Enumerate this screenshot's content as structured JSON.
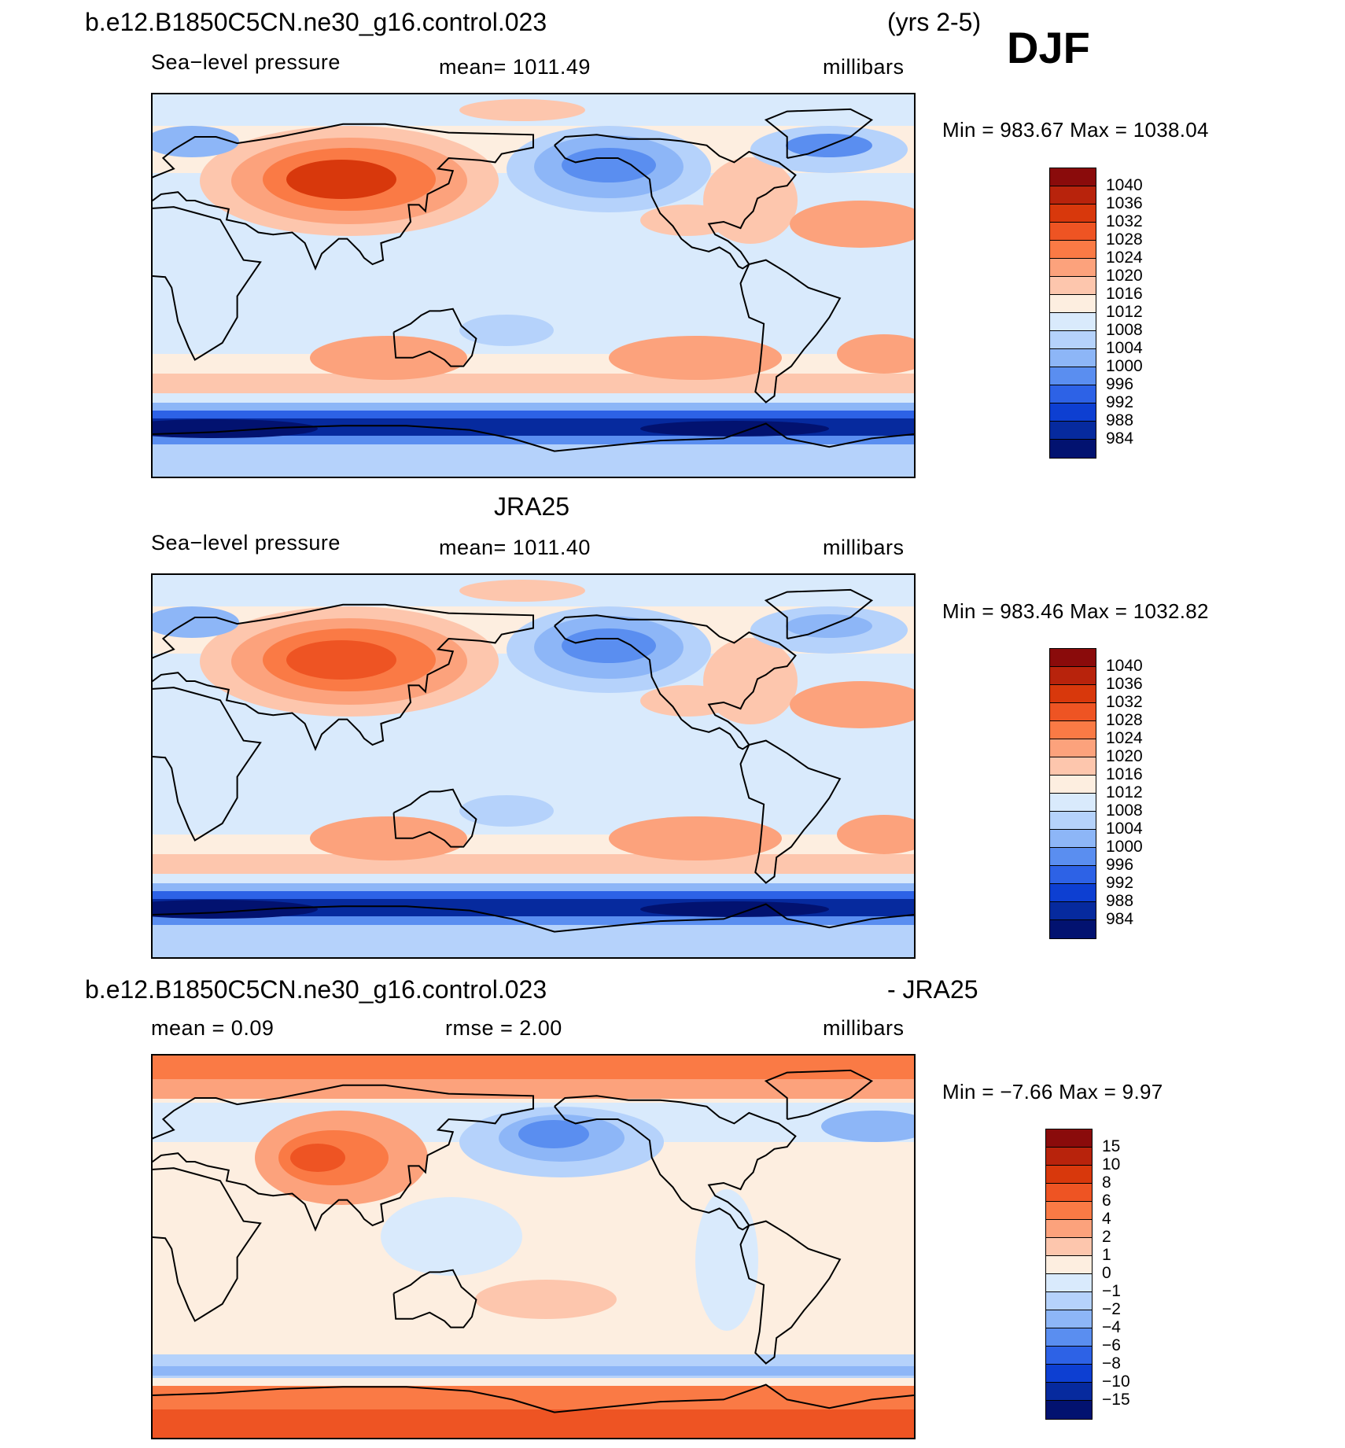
{
  "header": {
    "case_name": "b.e12.B1850C5CN.ne30_g16.control.023",
    "years": "(yrs 2-5)",
    "season": "DJF"
  },
  "panels": [
    {
      "variable": "Sea−level pressure",
      "mean_text": "mean=  1011.49",
      "units": "millibars",
      "minmax": "Min  =  983.67  Max  =  1038.04",
      "title": ""
    },
    {
      "variable": "Sea−level pressure",
      "mean_text": "mean=  1011.40",
      "units": "millibars",
      "minmax": "Min  =  983.46  Max  =  1032.82",
      "title": "JRA25"
    },
    {
      "variable": "",
      "mean_text": "mean  =      0.09",
      "rmse_text": "rmse  =      2.00",
      "units": "millibars",
      "minmax": "Min  =    −7.66  Max  =      9.97",
      "title_left": "b.e12.B1850C5CN.ne30_g16.control.023",
      "title_right": "- JRA25"
    }
  ],
  "colorbars": {
    "absolute": {
      "labels": [
        "1040",
        "1036",
        "1032",
        "1028",
        "1024",
        "1020",
        "1016",
        "1012",
        "1008",
        "1004",
        "1000",
        "996",
        "992",
        "988",
        "984"
      ],
      "colors": [
        "#8a0b0b",
        "#b8230c",
        "#d8380c",
        "#ee5423",
        "#fa7a45",
        "#fca27c",
        "#fdc6ad",
        "#fdeee0",
        "#d9eafc",
        "#b5d2fb",
        "#8db6f7",
        "#5a8ef0",
        "#2d62e6",
        "#0d3fd2",
        "#062a9e",
        "#021270"
      ]
    },
    "difference": {
      "labels": [
        "15",
        "10",
        "8",
        "6",
        "4",
        "2",
        "1",
        "0",
        "−1",
        "−2",
        "−4",
        "−6",
        "−8",
        "−10",
        "−15"
      ],
      "colors": [
        "#8a0b0b",
        "#b8230c",
        "#d8380c",
        "#ee5423",
        "#fa7a45",
        "#fca27c",
        "#fdc6ad",
        "#fdeee0",
        "#d9eafc",
        "#b5d2fb",
        "#8db6f7",
        "#5a8ef0",
        "#2d62e6",
        "#0d3fd2",
        "#062a9e",
        "#021270"
      ]
    }
  },
  "map_fields": {
    "model": {
      "pattern": "slp",
      "siberian_high": 1036,
      "aleutian_low": 996,
      "icelandic_low": 996,
      "southern_ocean": 984
    },
    "obs": {
      "pattern": "slp",
      "siberian_high": 1032,
      "aleutian_low": 996,
      "icelandic_low": 1000,
      "southern_ocean": 984
    },
    "diff": {
      "pattern": "diff",
      "tibet_max": 8,
      "north_pacific_min": -8,
      "antarctic_max": 6,
      "arctic_max": 4
    }
  }
}
